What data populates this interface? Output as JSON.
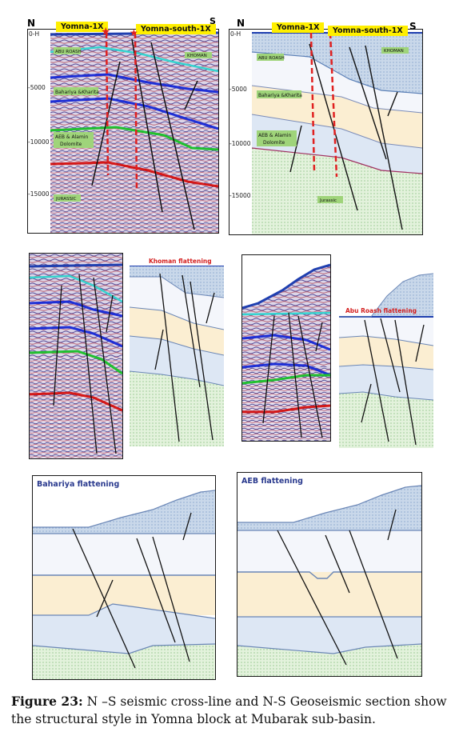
{
  "panel_top_left": {
    "north": "N",
    "south": "S",
    "well_1": "Yomna-1X",
    "well_2": "Yomna-south-1X",
    "depth_ticks": [
      "0-H",
      "-5000",
      "-10000",
      "-15000"
    ],
    "label_abu_roash": "ABU ROASH",
    "label_bahariya": "Bahariya &Kharita",
    "label_aeb": "AEB & Alamin",
    "label_aeb_2": "Dolomite",
    "label_khoman": "KHOMAN",
    "label_jurassic": "JURASSIC"
  },
  "panel_top_right": {
    "north": "N",
    "south": "S",
    "well_1": "Yomna-1X",
    "well_2": "Yomna-south-1X",
    "depth_ticks": [
      "0-H",
      "-5000",
      "-10000",
      "-15000"
    ],
    "label_abu_roash": "ABU ROASH",
    "label_bahariya": "Bahariya &Kharita",
    "label_aeb": "AEB & Alamin",
    "label_aeb_2": "Dolomite",
    "label_khoman": "KHOMAN",
    "label_jurassic": "Jurassic"
  },
  "panel_mid_left": {
    "flatten_label": "Khoman flattening"
  },
  "panel_mid_right": {
    "flatten_label": "Abu Roash flattening"
  },
  "panel_bot_left": {
    "title": "Bahariya flattening"
  },
  "panel_bot_right": {
    "title": "AEB flattening"
  },
  "caption": {
    "prefix": "Figure 23:",
    "text": " N –S seismic cross-line and N-S Geoseismic section show the structural style in Yomna block at Mubarak sub-basin."
  },
  "colors": {
    "khoman_fill": "#c9d8ea",
    "abu_roash_fill": "#f4f6fb",
    "bahariya_fill": "#fbeed2",
    "aeb_fill": "#dde7f4",
    "jurassic_fill": "#e3f2dc",
    "well_marker": "#e02020",
    "well_tag": "#ffef00",
    "label_green": "#93d35c"
  }
}
